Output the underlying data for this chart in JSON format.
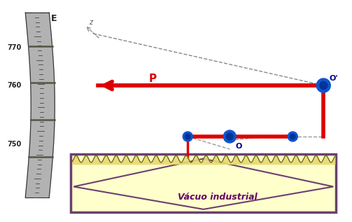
{
  "bg_color": "#ffffff",
  "label_E": "E",
  "label_P": "P",
  "label_O": "O",
  "label_O_prime": "O'",
  "tick_labels": [
    "770",
    "760",
    "750"
  ],
  "vacuum_box_label": "Vácuo industrial",
  "red_color": "#dd0000",
  "blue_outer": "#1144cc",
  "blue_inner": "#ffffff",
  "dashed_color": "#888888",
  "baro_fill": "#aaaaaa",
  "baro_dark_bands": "#555544",
  "baro_tick_color": "#444444",
  "box_fill": "#ffffcc",
  "box_border": "#6b4070",
  "wave_fill": "#e8d870",
  "wave_line": "#555500",
  "vac_text_color": "#660066",
  "arrow_lw": 4.0,
  "dot_r": 0.018
}
